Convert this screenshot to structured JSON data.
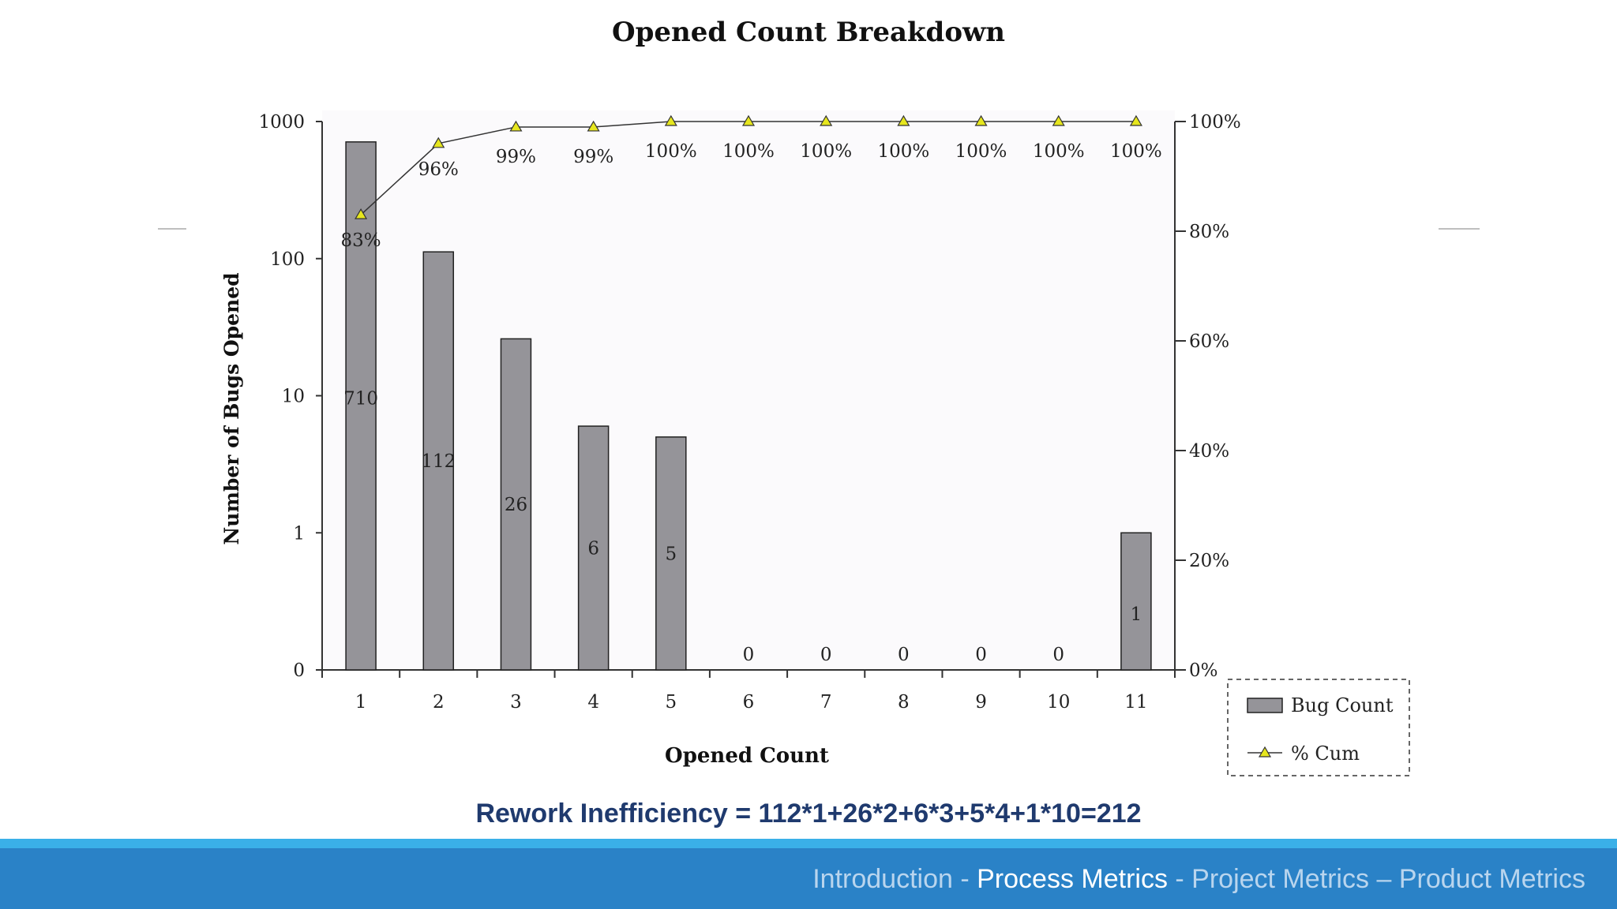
{
  "chart_data": {
    "type": "bar",
    "title": "Opened Count Breakdown",
    "xlabel": "Opened Count",
    "ylabel": "Number of Bugs Opened",
    "categories": [
      "1",
      "2",
      "3",
      "4",
      "5",
      "6",
      "7",
      "8",
      "9",
      "10",
      "11"
    ],
    "y_scale": "log",
    "y_ticks": [
      "0",
      "1",
      "10",
      "100",
      "1000"
    ],
    "y2_ticks": [
      "0%",
      "20%",
      "40%",
      "60%",
      "80%",
      "100%"
    ],
    "y2lim": [
      0,
      100
    ],
    "series": [
      {
        "name": "Bug Count",
        "type": "bar",
        "color": "#959499",
        "values": [
          710,
          112,
          26,
          6,
          5,
          0,
          0,
          0,
          0,
          0,
          1
        ],
        "labels": [
          "710",
          "112",
          "26",
          "6",
          "5",
          "0",
          "0",
          "0",
          "0",
          "0",
          "1"
        ]
      },
      {
        "name": "% Cum",
        "type": "line",
        "axis": "secondary",
        "marker": "triangle",
        "marker_color": "#e6e61e",
        "values": [
          83,
          96,
          99,
          99,
          100,
          100,
          100,
          100,
          100,
          100,
          100
        ],
        "labels": [
          "83%",
          "96%",
          "99%",
          "99%",
          "100%",
          "100%",
          "100%",
          "100%",
          "100%",
          "100%",
          "100%"
        ]
      }
    ],
    "legend": {
      "position": "bottom-right",
      "items": [
        "Bug Count",
        "% Cum"
      ]
    },
    "grid": false
  },
  "formula": "Rework Inefficiency = 112*1+26*2+6*3+5*4+1*10=212",
  "footer": {
    "nav": [
      {
        "label": "Introduction",
        "active": false
      },
      {
        "label": "Process Metrics",
        "active": true
      },
      {
        "label": "Project Metrics",
        "active": false
      },
      {
        "label": "Product Metrics",
        "active": false
      }
    ],
    "separators": [
      " - ",
      " - ",
      " – "
    ]
  }
}
